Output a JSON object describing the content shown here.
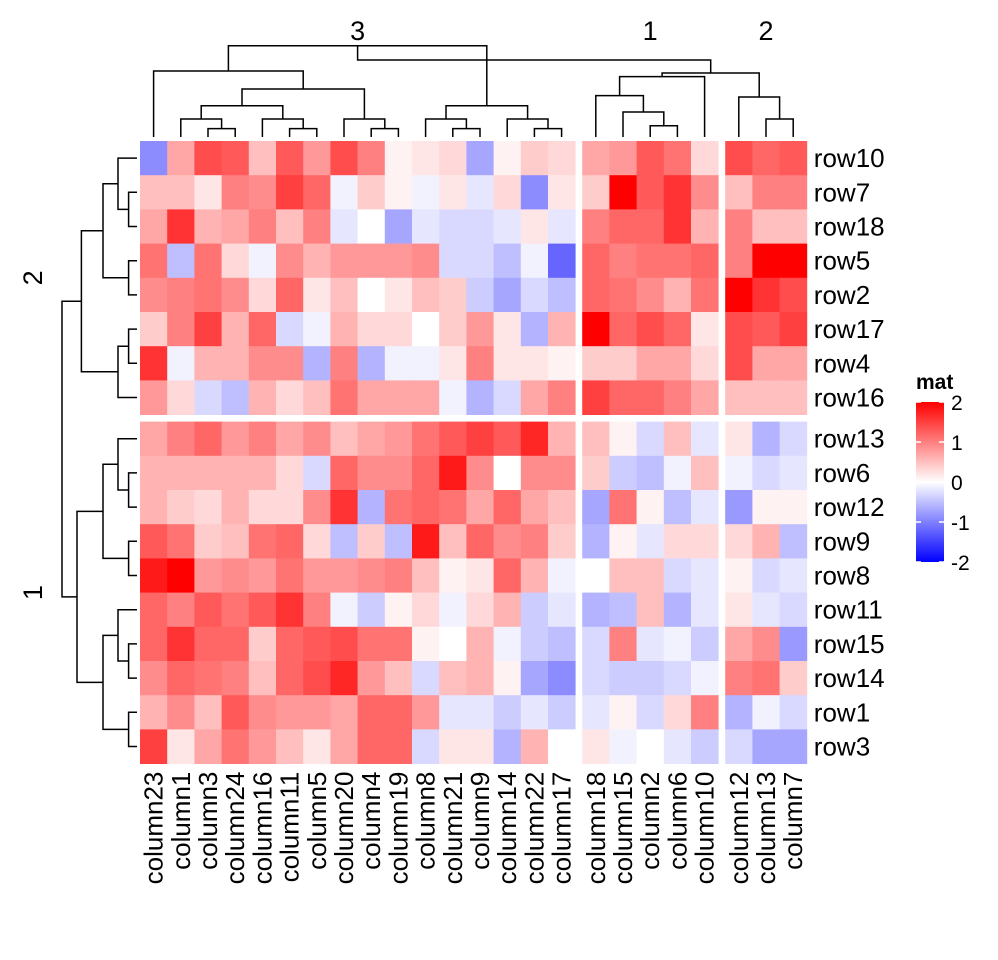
{
  "chart_data": {
    "type": "heatmap",
    "title": "",
    "legend": {
      "title": "mat",
      "ticks": [
        2,
        1,
        0,
        -1,
        -2
      ],
      "range": [
        -2,
        2
      ],
      "colors": {
        "low": "#0000ff",
        "mid": "#ffffff",
        "high": "#ff0000"
      }
    },
    "row_groups": [
      {
        "label": "2",
        "rows": [
          "row10",
          "row7",
          "row18",
          "row5",
          "row2",
          "row17",
          "row4",
          "row16"
        ]
      },
      {
        "label": "1",
        "rows": [
          "row13",
          "row6",
          "row12",
          "row9",
          "row8",
          "row11",
          "row15",
          "row14",
          "row1",
          "row3"
        ]
      }
    ],
    "column_groups": [
      {
        "label": "3",
        "columns": [
          "column23",
          "column1",
          "column3",
          "column24",
          "column16",
          "column11",
          "column5",
          "column20",
          "column4",
          "column19",
          "column8",
          "column21",
          "column9",
          "column14",
          "column22",
          "column17"
        ]
      },
      {
        "label": "1",
        "columns": [
          "column18",
          "column15",
          "column2",
          "column6",
          "column10"
        ]
      },
      {
        "label": "2",
        "columns": [
          "column12",
          "column13",
          "column7"
        ]
      }
    ],
    "values": [
      [
        -0.9,
        0.7,
        1.4,
        1.3,
        0.5,
        1.3,
        0.8,
        1.4,
        1.0,
        0.1,
        0.2,
        0.3,
        -0.7,
        0.1,
        0.4,
        0.3,
        0.7,
        0.8,
        1.3,
        1.1,
        0.3,
        1.4,
        1.2,
        1.3
      ],
      [
        0.5,
        0.5,
        0.2,
        1.0,
        0.9,
        1.5,
        1.2,
        -0.1,
        0.4,
        0.1,
        -0.1,
        0.2,
        -0.2,
        0.3,
        -0.9,
        0.2,
        0.4,
        2.0,
        1.3,
        1.6,
        0.9,
        0.5,
        1.0,
        1.0
      ],
      [
        0.7,
        1.6,
        0.6,
        0.7,
        1.0,
        0.5,
        1.0,
        -0.2,
        0.0,
        -0.7,
        -0.2,
        -0.3,
        -0.3,
        -0.2,
        0.2,
        -0.2,
        1.0,
        1.2,
        1.2,
        1.6,
        0.6,
        1.0,
        0.5,
        0.5
      ],
      [
        1.1,
        -0.5,
        1.1,
        0.3,
        -0.1,
        0.9,
        0.6,
        0.8,
        0.8,
        0.8,
        0.9,
        -0.3,
        -0.3,
        -0.5,
        -0.1,
        -1.2,
        1.2,
        1.0,
        1.1,
        1.1,
        1.2,
        1.0,
        2.0,
        2.0
      ],
      [
        0.9,
        1.0,
        1.1,
        0.9,
        0.3,
        1.2,
        0.2,
        0.5,
        0.0,
        0.2,
        0.5,
        0.4,
        -0.4,
        -0.7,
        -0.3,
        -0.5,
        1.2,
        1.1,
        0.9,
        0.6,
        1.1,
        2.0,
        1.6,
        1.4
      ],
      [
        0.4,
        1.0,
        1.5,
        0.6,
        1.2,
        -0.3,
        -0.1,
        0.6,
        0.3,
        0.3,
        0.0,
        0.4,
        0.8,
        0.2,
        -0.6,
        0.6,
        2.0,
        1.2,
        1.4,
        1.2,
        0.2,
        1.4,
        1.3,
        1.5
      ],
      [
        1.6,
        -0.1,
        0.6,
        0.6,
        0.9,
        0.9,
        -0.6,
        1.0,
        -0.6,
        -0.1,
        -0.1,
        0.2,
        1.0,
        0.2,
        0.2,
        0.1,
        0.4,
        0.4,
        0.7,
        0.7,
        0.3,
        1.4,
        0.7,
        0.7
      ],
      [
        0.8,
        0.3,
        -0.3,
        -0.5,
        0.6,
        0.3,
        0.5,
        1.1,
        0.7,
        0.7,
        0.7,
        -0.1,
        -0.6,
        -0.3,
        0.7,
        1.0,
        1.5,
        1.2,
        1.2,
        1.0,
        0.7,
        0.5,
        0.5,
        0.5
      ],
      [
        0.7,
        1.0,
        1.2,
        0.8,
        1.0,
        0.7,
        0.9,
        0.5,
        0.7,
        0.8,
        1.1,
        1.3,
        1.5,
        1.3,
        1.7,
        0.6,
        0.5,
        0.1,
        -0.3,
        0.5,
        -0.2,
        0.2,
        -0.6,
        -0.3
      ],
      [
        0.6,
        0.6,
        0.6,
        0.6,
        0.6,
        0.3,
        -0.3,
        1.2,
        0.9,
        0.9,
        1.2,
        1.8,
        0.9,
        0.0,
        0.9,
        0.9,
        0.4,
        -0.4,
        -0.5,
        -0.1,
        0.5,
        -0.1,
        -0.3,
        -0.2
      ],
      [
        0.6,
        0.4,
        0.3,
        0.6,
        0.3,
        0.3,
        0.9,
        1.6,
        -0.6,
        1.1,
        1.2,
        1.1,
        0.7,
        1.2,
        0.7,
        0.5,
        -0.7,
        1.1,
        0.1,
        -0.5,
        -0.2,
        -0.8,
        0.1,
        0.1
      ],
      [
        1.3,
        1.1,
        0.4,
        0.5,
        1.1,
        1.2,
        0.3,
        -0.5,
        0.4,
        -0.5,
        1.8,
        0.5,
        1.2,
        0.9,
        1.0,
        0.4,
        -0.6,
        0.1,
        -0.2,
        0.3,
        0.3,
        0.3,
        0.6,
        -0.5
      ],
      [
        1.8,
        2.0,
        0.8,
        0.9,
        0.8,
        1.1,
        0.8,
        0.8,
        0.9,
        1.0,
        0.5,
        0.1,
        0.2,
        1.2,
        0.6,
        -0.1,
        0.0,
        0.5,
        0.5,
        -0.3,
        -0.2,
        0.1,
        -0.3,
        -0.2
      ],
      [
        1.2,
        1.0,
        1.3,
        1.1,
        1.3,
        1.6,
        1.0,
        -0.1,
        -0.4,
        0.1,
        0.3,
        -0.1,
        0.3,
        0.6,
        -0.4,
        -0.2,
        -0.6,
        -0.5,
        0.5,
        -0.6,
        -0.2,
        0.2,
        -0.2,
        -0.3
      ],
      [
        1.2,
        1.6,
        1.2,
        1.2,
        0.4,
        1.2,
        1.3,
        1.4,
        1.1,
        1.1,
        0.1,
        0.0,
        0.6,
        -0.1,
        -0.4,
        -0.5,
        -0.3,
        1.0,
        -0.2,
        -0.1,
        -0.4,
        0.7,
        0.9,
        -0.8
      ],
      [
        0.9,
        1.2,
        1.1,
        1.0,
        0.5,
        1.2,
        1.4,
        1.7,
        0.8,
        0.5,
        -0.3,
        0.5,
        0.6,
        0.1,
        -0.7,
        -0.9,
        -0.3,
        -0.4,
        -0.4,
        -0.3,
        -0.1,
        1.0,
        1.1,
        0.4
      ],
      [
        0.6,
        0.9,
        0.5,
        1.3,
        0.9,
        0.8,
        0.8,
        0.7,
        1.2,
        1.2,
        0.8,
        -0.2,
        -0.2,
        -0.4,
        -0.2,
        -0.4,
        -0.2,
        0.1,
        -0.3,
        0.3,
        1.0,
        -0.6,
        -0.1,
        -0.3
      ],
      [
        1.5,
        0.2,
        0.7,
        1.1,
        0.8,
        0.5,
        0.2,
        0.7,
        1.2,
        1.2,
        -0.3,
        0.2,
        0.2,
        -0.6,
        0.6,
        0.0,
        0.2,
        -0.1,
        0.0,
        -0.2,
        -0.4,
        -0.3,
        -0.7,
        -0.7
      ]
    ]
  }
}
